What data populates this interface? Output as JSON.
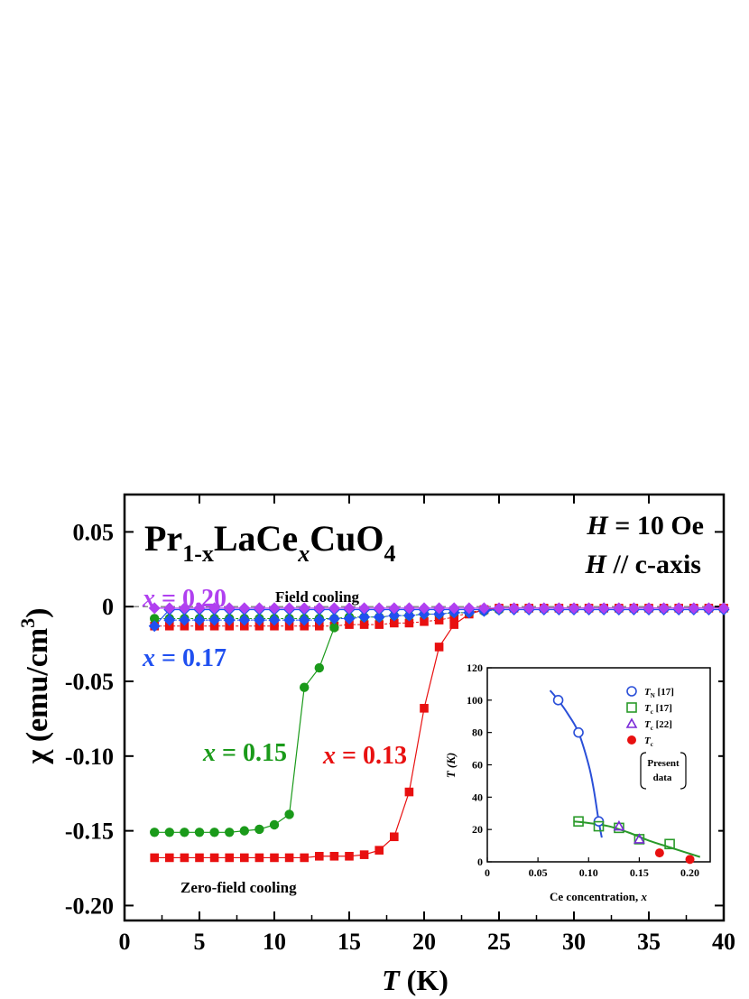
{
  "chart_data": [
    {
      "type": "scatter",
      "title": "Pr1-xLaCexCuO4",
      "title_parts": {
        "a": "Pr",
        "b": "1-x",
        "c": "LaCe",
        "d": "x",
        "e": "CuO",
        "f": "4"
      },
      "field_label": "H = 10 Oe",
      "field_parts": {
        "var": "H",
        "val": " = 10 Oe"
      },
      "axis_label": "H // c-axis",
      "axis_parts": {
        "var": "H",
        "val": " // c-axis"
      },
      "xlabel": "T (K)",
      "xlabel_parts": {
        "var": "T",
        "unit": " (K)"
      },
      "ylabel": "χ (emu/cm3)",
      "ylabel_parts": {
        "main": "χ (emu/cm",
        "sup": "3",
        "close": ")"
      },
      "xlim": [
        0,
        40
      ],
      "ylim": [
        -0.21,
        0.075
      ],
      "xticks": [
        0,
        5,
        10,
        15,
        20,
        25,
        30,
        35,
        40
      ],
      "xtick_labels": [
        "0",
        "5",
        "10",
        "15",
        "20",
        "25",
        "30",
        "35",
        "40"
      ],
      "yticks": [
        0.05,
        0,
        -0.05,
        -0.1,
        -0.15,
        -0.2
      ],
      "ytick_labels": [
        "0.05",
        "0",
        "-0.05",
        "-0.10",
        "-0.15",
        "-0.20"
      ],
      "annotations": {
        "field_cooling": "Field cooling",
        "zero_field_cooling": "Zero-field cooling"
      },
      "series": [
        {
          "name": "x = 0.20",
          "var": "x",
          "val": " = 0.20",
          "color": "#b040f0",
          "marker": "diamond",
          "mode": "FC",
          "x": [
            2,
            3,
            4,
            5,
            6,
            7,
            8,
            9,
            10,
            11,
            12,
            13,
            14,
            15,
            16,
            17,
            18,
            19,
            20,
            21,
            22,
            23,
            24,
            25,
            26,
            27,
            28,
            29,
            30,
            31,
            32,
            33,
            34,
            35,
            36,
            37,
            38,
            39,
            40
          ],
          "y": [
            -0.001,
            -0.001,
            -0.001,
            -0.001,
            -0.001,
            -0.001,
            -0.001,
            -0.001,
            -0.001,
            -0.001,
            -0.001,
            -0.001,
            -0.001,
            -0.001,
            -0.001,
            -0.001,
            -0.001,
            -0.001,
            -0.001,
            -0.001,
            -0.001,
            -0.001,
            -0.001,
            -0.001,
            -0.001,
            -0.001,
            -0.001,
            -0.001,
            -0.001,
            -0.001,
            -0.001,
            -0.001,
            -0.001,
            -0.001,
            -0.001,
            -0.001,
            -0.001,
            -0.001,
            -0.001
          ]
        },
        {
          "name": "x = 0.17",
          "var": "x",
          "val": " = 0.17",
          "color": "#2050f0",
          "marker": "diamond",
          "mode": "FC+ZFC",
          "x": [
            2,
            3,
            4,
            5,
            6,
            7,
            8,
            9,
            10,
            11,
            12,
            13,
            14,
            15,
            16,
            17,
            18,
            19,
            20,
            21,
            22,
            23,
            24,
            25,
            26,
            27,
            28,
            29,
            30,
            31,
            32,
            33,
            34,
            35,
            36,
            37,
            38,
            39,
            40
          ],
          "y": [
            -0.013,
            -0.002,
            -0.002,
            -0.002,
            -0.002,
            -0.002,
            -0.002,
            -0.002,
            -0.002,
            -0.002,
            -0.002,
            -0.002,
            -0.002,
            -0.002,
            -0.002,
            -0.002,
            -0.002,
            -0.002,
            -0.002,
            -0.002,
            -0.002,
            -0.002,
            -0.002,
            -0.002,
            -0.002,
            -0.002,
            -0.002,
            -0.002,
            -0.002,
            -0.002,
            -0.002,
            -0.002,
            -0.002,
            -0.002,
            -0.002,
            -0.002,
            -0.002,
            -0.002,
            -0.002
          ],
          "fc_x": [
            3,
            4,
            5,
            6,
            7,
            8,
            9,
            10,
            11,
            12,
            13,
            14,
            15,
            16,
            17,
            18,
            19,
            20,
            21,
            22,
            23,
            24,
            25
          ],
          "fc_y": [
            -0.009,
            -0.009,
            -0.009,
            -0.009,
            -0.009,
            -0.009,
            -0.009,
            -0.009,
            -0.009,
            -0.009,
            -0.009,
            -0.008,
            -0.008,
            -0.007,
            -0.007,
            -0.006,
            -0.006,
            -0.005,
            -0.005,
            -0.004,
            -0.004,
            -0.003,
            -0.002
          ]
        },
        {
          "name": "x = 0.15",
          "var": "x",
          "val": " = 0.15",
          "color": "#1a9a1a",
          "marker": "circle",
          "mode": "ZFC",
          "x": [
            2,
            3,
            4,
            5,
            6,
            7,
            8,
            9,
            10,
            11,
            12,
            13,
            14
          ],
          "y": [
            -0.151,
            -0.151,
            -0.151,
            -0.151,
            -0.151,
            -0.151,
            -0.15,
            -0.149,
            -0.146,
            -0.139,
            -0.054,
            -0.041,
            -0.014
          ],
          "fc_x": [
            2,
            3,
            4,
            5,
            6,
            7,
            8,
            9,
            10,
            11,
            12,
            13,
            14,
            15,
            16,
            17,
            18,
            19,
            20,
            21,
            22,
            23,
            24,
            25
          ],
          "fc_y": [
            -0.008,
            -0.008,
            -0.008,
            -0.008,
            -0.008,
            -0.008,
            -0.008,
            -0.008,
            -0.008,
            -0.008,
            -0.008,
            -0.008,
            -0.008,
            -0.007,
            -0.007,
            -0.007,
            -0.006,
            -0.006,
            -0.005,
            -0.005,
            -0.004,
            -0.004,
            -0.003,
            -0.002
          ]
        },
        {
          "name": "x = 0.13",
          "var": "x",
          "val": " = 0.13",
          "color": "#e81010",
          "marker": "square",
          "mode": "ZFC",
          "x": [
            2,
            3,
            4,
            5,
            6,
            7,
            8,
            9,
            10,
            11,
            12,
            13,
            14,
            15,
            16,
            17,
            18,
            19,
            20,
            21,
            22,
            23,
            24,
            25,
            26,
            27,
            28,
            29,
            30,
            31,
            32,
            33,
            34,
            35,
            36,
            37,
            38,
            39,
            40
          ],
          "y": [
            -0.168,
            -0.168,
            -0.168,
            -0.168,
            -0.168,
            -0.168,
            -0.168,
            -0.168,
            -0.168,
            -0.168,
            -0.168,
            -0.167,
            -0.167,
            -0.167,
            -0.166,
            -0.163,
            -0.154,
            -0.124,
            -0.068,
            -0.027,
            -0.012,
            -0.005,
            -0.002,
            -0.001,
            -0.001,
            -0.001,
            -0.001,
            -0.001,
            -0.001,
            -0.001,
            -0.001,
            -0.001,
            -0.001,
            -0.001,
            -0.001,
            -0.001,
            -0.001,
            -0.001,
            -0.001
          ],
          "fc_x": [
            2,
            3,
            4,
            5,
            6,
            7,
            8,
            9,
            10,
            11,
            12,
            13,
            14,
            15,
            16,
            17,
            18,
            19,
            20,
            21,
            22,
            23,
            24
          ],
          "fc_y": [
            -0.013,
            -0.013,
            -0.013,
            -0.013,
            -0.013,
            -0.013,
            -0.013,
            -0.013,
            -0.013,
            -0.013,
            -0.013,
            -0.013,
            -0.013,
            -0.012,
            -0.012,
            -0.012,
            -0.011,
            -0.011,
            -0.01,
            -0.009,
            -0.007,
            -0.004,
            -0.002
          ]
        }
      ]
    },
    {
      "type": "scatter",
      "title": "",
      "xlabel": "Ce concentration, x",
      "xlabel_parts": {
        "main": "Ce concentration, ",
        "var": "x"
      },
      "ylabel": "T (K)",
      "xlim": [
        0,
        0.22
      ],
      "ylim": [
        0,
        120
      ],
      "xticks": [
        0,
        0.05,
        0.1,
        0.15,
        0.2
      ],
      "xtick_labels": [
        "0",
        "0.05",
        "0.10",
        "0.15",
        "0.20"
      ],
      "yticks": [
        0,
        20,
        40,
        60,
        80,
        100,
        120
      ],
      "ytick_labels": [
        "0",
        "20",
        "40",
        "60",
        "80",
        "100",
        "120"
      ],
      "legend_loc": "top-right",
      "series": [
        {
          "name": "TN [17]",
          "sym": "T",
          "sub": "N",
          "ref": " [17]",
          "marker": "circle-open",
          "color": "#2a4fd8",
          "x": [
            0.07,
            0.09,
            0.11
          ],
          "y": [
            100,
            80,
            25
          ]
        },
        {
          "name": "Tc [17]",
          "sym": "T",
          "sub": "c",
          "ref": " [17]",
          "marker": "square-open",
          "color": "#2a9a2a",
          "x": [
            0.09,
            0.11,
            0.13,
            0.15,
            0.18
          ],
          "y": [
            25,
            22,
            21,
            14,
            11
          ]
        },
        {
          "name": "Tc [22]",
          "sym": "T",
          "sub": "c",
          "ref": " [22]",
          "marker": "triangle-open",
          "color": "#7a2ad8",
          "x": [
            0.13,
            0.15
          ],
          "y": [
            22,
            14
          ]
        },
        {
          "name": "Tc",
          "sym": "T",
          "sub": "c",
          "ref": "",
          "marker": "circle-filled",
          "color": "#e81010",
          "x": [
            0.17,
            0.2
          ],
          "y": [
            5.5,
            1.5
          ]
        }
      ],
      "fits": [
        {
          "name": "TN fit",
          "color": "#2a4fd8",
          "x": [
            0.062,
            0.07,
            0.08,
            0.09,
            0.1,
            0.105,
            0.11,
            0.113
          ],
          "y": [
            106,
            100,
            91,
            80,
            60,
            45,
            25,
            15
          ]
        },
        {
          "name": "Tc fit",
          "color": "#2a9a2a",
          "x": [
            0.085,
            0.1,
            0.12,
            0.14,
            0.16,
            0.18,
            0.21
          ],
          "y": [
            25,
            24,
            22,
            18,
            13,
            9,
            3
          ]
        }
      ],
      "note": "Present data",
      "note_lines": [
        "Present",
        "data"
      ]
    }
  ]
}
